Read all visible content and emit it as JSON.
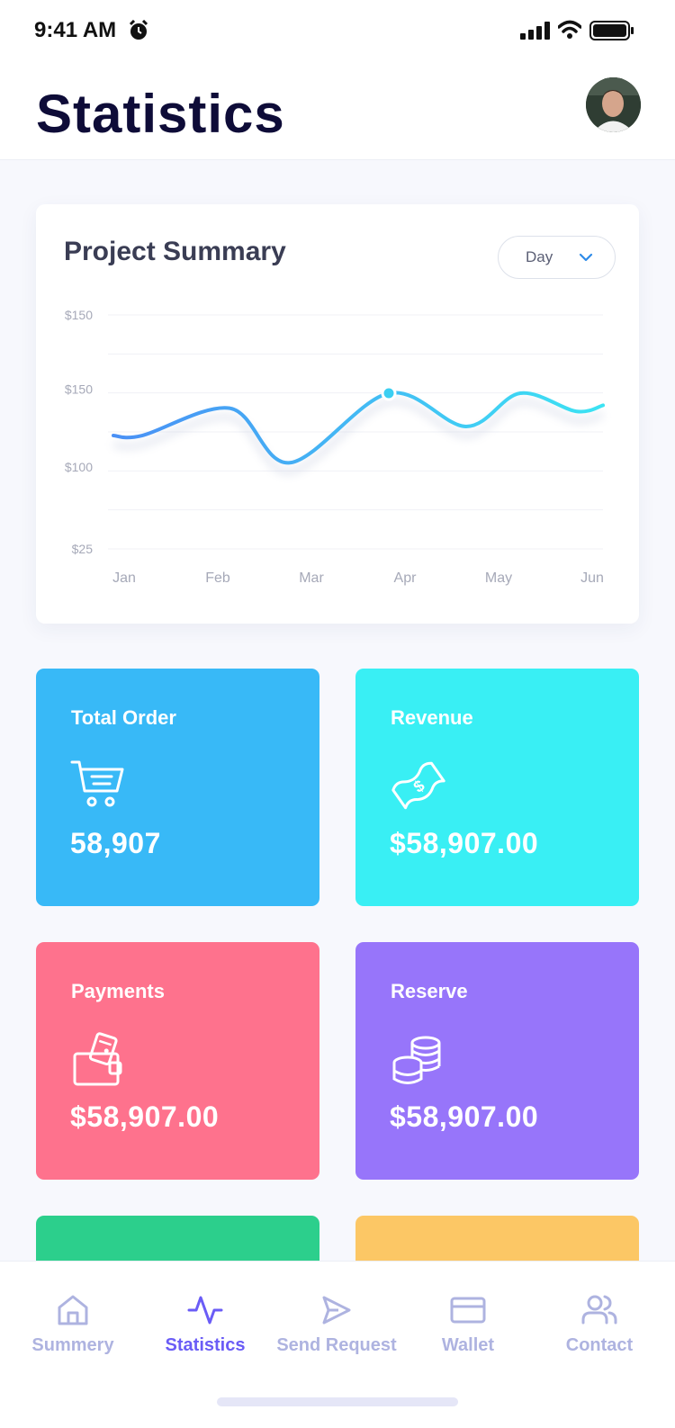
{
  "status_bar": {
    "time": "9:41 AM"
  },
  "header": {
    "title": "Statistics"
  },
  "chart_card": {
    "title": "Project Summary",
    "range_select": "Day"
  },
  "chart_data": {
    "type": "line",
    "y_tick_labels": [
      "$150",
      "$150",
      "$100",
      "$25"
    ],
    "categories": [
      "Jan",
      "Feb",
      "Mar",
      "Apr",
      "May",
      "Jun"
    ],
    "series": [
      {
        "values": [
          122,
          140,
          104,
          150,
          128,
          142
        ]
      }
    ],
    "highlighted_category": "Apr",
    "grid": true,
    "line_color_start": "#4a90f5",
    "line_color_end": "#3ce3f3"
  },
  "stats": [
    {
      "label": "Total Order",
      "value": "58,907",
      "icon": "shopping-cart-icon",
      "color": "#38b9f7"
    },
    {
      "label": "Revenue",
      "value": "$58,907.00",
      "icon": "dollar-bill-icon",
      "color": "#39eff4"
    },
    {
      "label": "Payments",
      "value": "$58,907.00",
      "icon": "wallet-icon",
      "color": "#fe728d"
    },
    {
      "label": "Reserve",
      "value": "$58,907.00",
      "icon": "coin-stack-icon",
      "color": "#9775fa"
    },
    {
      "label": "",
      "value": "",
      "icon": "",
      "color": "#2ccf8c"
    },
    {
      "label": "",
      "value": "",
      "icon": "",
      "color": "#fcc765"
    }
  ],
  "bottom_nav": {
    "items": [
      {
        "label": "Summery",
        "icon": "home-icon",
        "active": false
      },
      {
        "label": "Statistics",
        "icon": "activity-icon",
        "active": true
      },
      {
        "label": "Send Request",
        "icon": "send-icon",
        "active": false
      },
      {
        "label": "Wallet",
        "icon": "credit-card-icon",
        "active": false
      },
      {
        "label": "Contact",
        "icon": "users-icon",
        "active": false
      }
    ]
  }
}
